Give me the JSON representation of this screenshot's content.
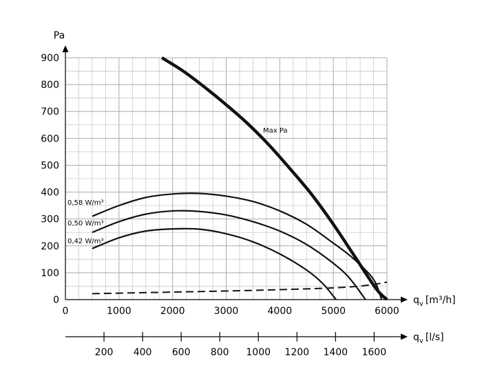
{
  "chart_data": {
    "type": "line",
    "y_axis": {
      "label": "Pa",
      "ticks": [
        "0",
        "100",
        "200",
        "300",
        "400",
        "500",
        "600",
        "700",
        "800",
        "900"
      ],
      "ylim": [
        0,
        900
      ],
      "grid": true
    },
    "x_axis": {
      "label_prefix": "q",
      "label_sub": "v",
      "label_unit": "[m³/h]",
      "ticks": [
        "0",
        "1000",
        "2000",
        "3000",
        "4000",
        "5000",
        "6000"
      ],
      "xlim": [
        0,
        6000
      ],
      "grid": true
    },
    "x2_axis": {
      "label_prefix": "q",
      "label_sub": "v",
      "label_unit": "[l/s]",
      "ticks": [
        "200",
        "400",
        "600",
        "800",
        "1000",
        "1200",
        "1400",
        "1600"
      ]
    },
    "series": [
      {
        "name": "Max Pa",
        "style": "bold",
        "x": [
          1800,
          2200,
          2600,
          3000,
          3400,
          3800,
          4200,
          4600,
          5000,
          5400,
          5800,
          6000
        ],
        "y": [
          900,
          850,
          790,
          725,
          655,
          575,
          485,
          390,
          280,
          160,
          40,
          0
        ]
      },
      {
        "name": "0,58 W/m³",
        "style": "solid",
        "x": [
          500,
          1000,
          1500,
          2000,
          2500,
          3000,
          3500,
          4000,
          4500,
          5000,
          5300,
          5600,
          5780,
          5900
        ],
        "y": [
          310,
          350,
          380,
          393,
          395,
          385,
          365,
          330,
          280,
          210,
          165,
          110,
          65,
          0
        ]
      },
      {
        "name": "0,50 W/m³",
        "style": "solid",
        "x": [
          500,
          1000,
          1500,
          2000,
          2500,
          3000,
          3500,
          4000,
          4500,
          5000,
          5300,
          5600
        ],
        "y": [
          250,
          290,
          318,
          330,
          328,
          315,
          290,
          255,
          205,
          135,
          80,
          0
        ]
      },
      {
        "name": "0,42 W/m³",
        "style": "solid",
        "x": [
          500,
          1000,
          1500,
          2000,
          2500,
          3000,
          3500,
          4000,
          4500,
          4800,
          5050
        ],
        "y": [
          190,
          230,
          255,
          263,
          262,
          245,
          215,
          170,
          110,
          60,
          0
        ]
      },
      {
        "name": "",
        "style": "dashed",
        "x": [
          500,
          2000,
          3000,
          4000,
          4800,
          5300,
          5700,
          6000
        ],
        "y": [
          22,
          28,
          32,
          37,
          42,
          47,
          55,
          65
        ]
      }
    ]
  }
}
